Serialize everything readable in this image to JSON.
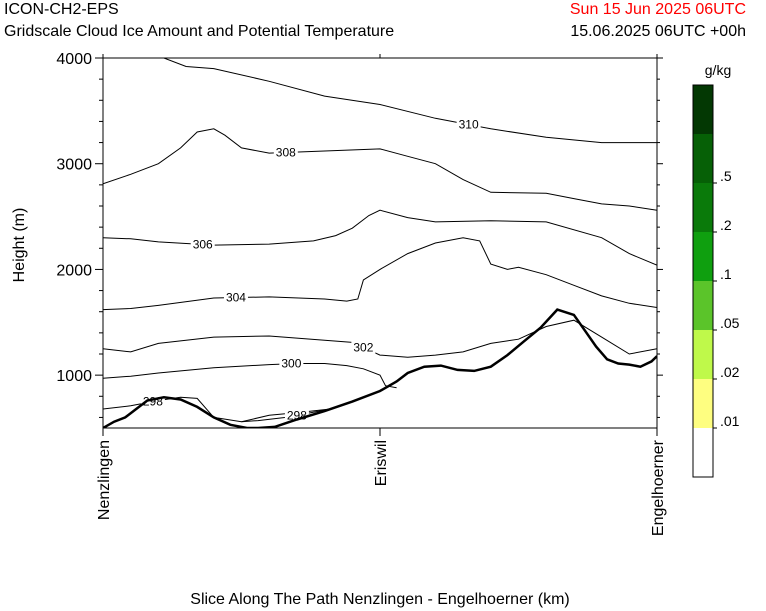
{
  "header": {
    "model": "ICON-CH2-EPS",
    "subtitle": "Gridscale Cloud Ice Amount and Potential Temperature",
    "valid_time": "Sun 15 Jun 2025 06UTC",
    "run_info": "15.06.2025 06UTC +00h"
  },
  "colors": {
    "valid_time": "#ff0000",
    "contour": "#000000",
    "terrain": "#000000"
  },
  "chart_data": {
    "type": "line",
    "title": "Gridscale Cloud Ice Amount and Potential Temperature",
    "ylabel": "Height (m)",
    "xlabel": "Slice Along The Path Nenzlingen - Engelhoerner (km)",
    "ylim": [
      500,
      4000
    ],
    "xlim": [
      0,
      1
    ],
    "yticks": [
      1000,
      2000,
      3000,
      4000
    ],
    "ytick_labels": [
      "1000",
      "2000",
      "3000",
      "4000"
    ],
    "xticks": [
      {
        "x": 0.0,
        "label": "Nenzlingen"
      },
      {
        "x": 0.5,
        "label": "Eriswil"
      },
      {
        "x": 1.0,
        "label": "Engelhoerner"
      }
    ],
    "terrain": {
      "name": "terrain",
      "x": [
        0,
        0.02,
        0.04,
        0.06,
        0.08,
        0.11,
        0.14,
        0.17,
        0.2,
        0.23,
        0.26,
        0.28,
        0.31,
        0.35,
        0.4,
        0.45,
        0.5,
        0.53,
        0.55,
        0.58,
        0.61,
        0.64,
        0.67,
        0.7,
        0.73,
        0.76,
        0.79,
        0.82,
        0.85,
        0.87,
        0.89,
        0.91,
        0.93,
        0.95,
        0.97,
        0.99,
        1.0
      ],
      "y": [
        500,
        560,
        600,
        680,
        760,
        790,
        770,
        700,
        600,
        530,
        500,
        500,
        510,
        580,
        660,
        750,
        850,
        940,
        1020,
        1080,
        1090,
        1050,
        1040,
        1080,
        1190,
        1320,
        1450,
        1620,
        1570,
        1420,
        1270,
        1150,
        1110,
        1100,
        1080,
        1130,
        1180
      ]
    },
    "contours": [
      {
        "name": "298",
        "x": [
          0,
          0.05,
          0.1,
          0.14,
          0.17,
          0.2,
          0.25,
          0.3,
          0.36,
          0.41
        ],
        "y": [
          680,
          710,
          760,
          790,
          780,
          600,
          560,
          620,
          650,
          680
        ],
        "label_x": 0.09
      },
      {
        "name": "298",
        "x": [
          0.25,
          0.28,
          0.33,
          0.37,
          0.41
        ],
        "y": [
          560,
          570,
          600,
          640,
          680
        ],
        "label_x": 0.35
      },
      {
        "name": "300",
        "x": [
          0,
          0.05,
          0.1,
          0.2,
          0.3,
          0.35,
          0.4,
          0.44,
          0.47,
          0.5,
          0.51,
          0.53
        ],
        "y": [
          970,
          990,
          1020,
          1070,
          1100,
          1110,
          1110,
          1090,
          1060,
          1000,
          900,
          880
        ],
        "label_x": 0.34
      },
      {
        "name": "302",
        "x": [
          0,
          0.05,
          0.1,
          0.2,
          0.3,
          0.4,
          0.45,
          0.5,
          0.55,
          0.6,
          0.65,
          0.7,
          0.75,
          0.8,
          0.85,
          0.9,
          0.95,
          1.0
        ],
        "y": [
          1250,
          1220,
          1300,
          1360,
          1370,
          1330,
          1310,
          1190,
          1170,
          1190,
          1220,
          1300,
          1340,
          1460,
          1520,
          1360,
          1200,
          1250
        ],
        "label_x": 0.47
      },
      {
        "name": "304",
        "x": [
          0,
          0.05,
          0.1,
          0.2,
          0.3,
          0.4,
          0.44,
          0.46,
          0.47,
          0.5,
          0.55,
          0.6,
          0.65,
          0.68,
          0.7,
          0.73,
          0.75,
          0.8,
          0.85,
          0.9,
          0.95,
          1.0
        ],
        "y": [
          1620,
          1630,
          1660,
          1730,
          1740,
          1720,
          1700,
          1720,
          1900,
          2000,
          2150,
          2250,
          2300,
          2270,
          2050,
          2000,
          2020,
          1950,
          1850,
          1750,
          1680,
          1640
        ],
        "label_x": 0.24
      },
      {
        "name": "306",
        "x": [
          0,
          0.05,
          0.1,
          0.2,
          0.3,
          0.38,
          0.42,
          0.45,
          0.48,
          0.5,
          0.55,
          0.6,
          0.7,
          0.8,
          0.9,
          0.95,
          1.0
        ],
        "y": [
          2300,
          2290,
          2260,
          2230,
          2240,
          2270,
          2320,
          2390,
          2510,
          2560,
          2490,
          2450,
          2460,
          2450,
          2300,
          2150,
          2040
        ],
        "label_x": 0.18
      },
      {
        "name": "308",
        "x": [
          0,
          0.05,
          0.1,
          0.14,
          0.17,
          0.2,
          0.22,
          0.25,
          0.3,
          0.4,
          0.5,
          0.55,
          0.6,
          0.65,
          0.7,
          0.8,
          0.85,
          0.9,
          0.95,
          1.0
        ],
        "y": [
          2810,
          2900,
          3000,
          3150,
          3300,
          3330,
          3270,
          3150,
          3100,
          3120,
          3140,
          3070,
          3000,
          2850,
          2730,
          2720,
          2670,
          2620,
          2600,
          2560
        ],
        "label_x": 0.33
      },
      {
        "name": "310",
        "x": [
          0.11,
          0.15,
          0.2,
          0.3,
          0.4,
          0.5,
          0.6,
          0.7,
          0.8,
          0.9,
          1.0
        ],
        "y": [
          4000,
          3920,
          3900,
          3780,
          3640,
          3560,
          3430,
          3330,
          3250,
          3200,
          3200
        ],
        "label_x": 0.66
      }
    ],
    "legend": {
      "unit": "g/kg",
      "placement": "right",
      "levels": [
        ".01",
        ".02",
        ".05",
        ".1",
        ".2",
        ".5"
      ],
      "colors": [
        "#ffffff",
        "#fefe80",
        "#bff94a",
        "#5bc42a",
        "#0f9f0f",
        "#0a7a0a",
        "#066006",
        "#033803"
      ]
    }
  }
}
